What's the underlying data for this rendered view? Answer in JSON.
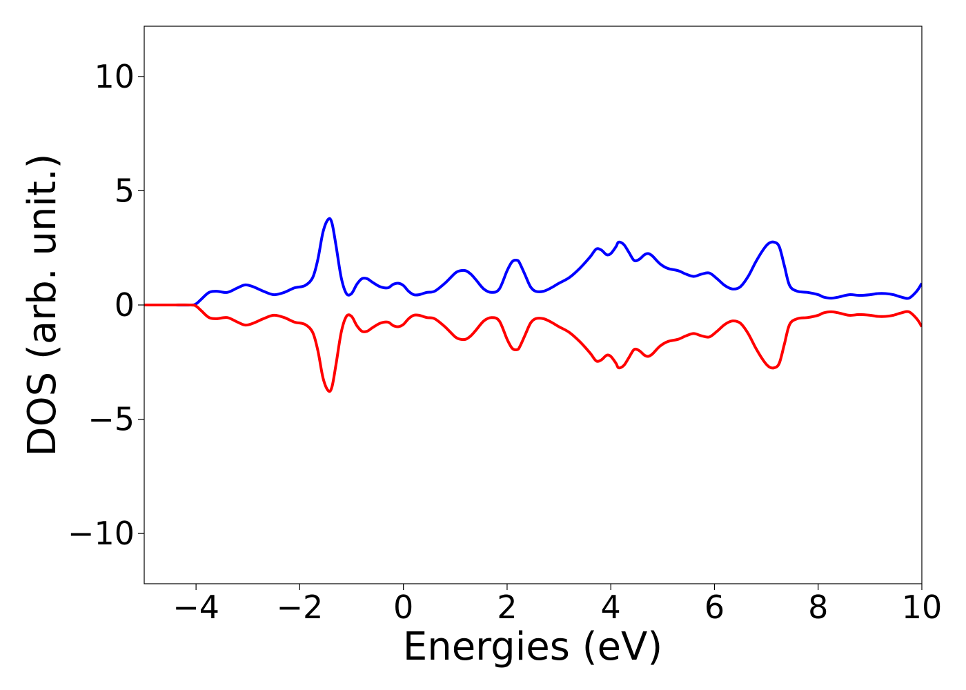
{
  "chart_data": {
    "type": "line",
    "title": "",
    "xlabel": "Energies (eV)",
    "ylabel": "DOS (arb. unit.)",
    "xlim": [
      -5,
      10
    ],
    "ylim": [
      -12.2,
      12.2
    ],
    "xticks": [
      -4,
      -2,
      0,
      2,
      4,
      6,
      8,
      10
    ],
    "xtick_labels": [
      "−4",
      "−2",
      "0",
      "2",
      "4",
      "6",
      "8",
      "10"
    ],
    "yticks": [
      -10,
      -5,
      0,
      5,
      10
    ],
    "ytick_labels": [
      "−10",
      "−5",
      "0",
      "5",
      "10"
    ],
    "grid": false,
    "legend": "none",
    "series": [
      {
        "color": "#0000ff",
        "x": [
          -5.0,
          -4.5,
          -4.1,
          -4.0,
          -3.9,
          -3.75,
          -3.6,
          -3.4,
          -3.2,
          -3.05,
          -2.9,
          -2.7,
          -2.5,
          -2.3,
          -2.1,
          -1.9,
          -1.75,
          -1.65,
          -1.55,
          -1.45,
          -1.38,
          -1.3,
          -1.2,
          -1.1,
          -1.0,
          -0.9,
          -0.8,
          -0.7,
          -0.6,
          -0.45,
          -0.3,
          -0.2,
          -0.1,
          0.0,
          0.1,
          0.2,
          0.3,
          0.45,
          0.6,
          0.8,
          1.0,
          1.1,
          1.2,
          1.3,
          1.4,
          1.55,
          1.7,
          1.85,
          2.0,
          2.1,
          2.2,
          2.25,
          2.35,
          2.45,
          2.55,
          2.7,
          2.85,
          3.0,
          3.2,
          3.4,
          3.6,
          3.72,
          3.82,
          3.92,
          4.0,
          4.1,
          4.15,
          4.25,
          4.35,
          4.45,
          4.55,
          4.65,
          4.72,
          4.8,
          4.95,
          5.1,
          5.3,
          5.45,
          5.6,
          5.75,
          5.9,
          6.05,
          6.2,
          6.35,
          6.5,
          6.65,
          6.8,
          6.95,
          7.05,
          7.15,
          7.25,
          7.35,
          7.45,
          7.6,
          7.8,
          8.0,
          8.1,
          8.25,
          8.4,
          8.6,
          8.8,
          9.0,
          9.15,
          9.3,
          9.45,
          9.6,
          9.75,
          9.9,
          10.0
        ],
        "y": [
          0.0,
          0.0,
          0.0,
          0.05,
          0.25,
          0.55,
          0.6,
          0.55,
          0.75,
          0.88,
          0.8,
          0.6,
          0.45,
          0.55,
          0.75,
          0.85,
          1.2,
          2.0,
          3.2,
          3.75,
          3.6,
          2.6,
          1.2,
          0.5,
          0.5,
          0.9,
          1.15,
          1.15,
          1.0,
          0.8,
          0.75,
          0.9,
          0.95,
          0.85,
          0.6,
          0.45,
          0.45,
          0.55,
          0.6,
          0.95,
          1.4,
          1.5,
          1.5,
          1.35,
          1.1,
          0.7,
          0.55,
          0.7,
          1.5,
          1.9,
          1.95,
          1.8,
          1.3,
          0.8,
          0.6,
          0.6,
          0.75,
          0.95,
          1.2,
          1.6,
          2.1,
          2.45,
          2.4,
          2.2,
          2.25,
          2.55,
          2.75,
          2.65,
          2.3,
          1.95,
          2.0,
          2.2,
          2.25,
          2.15,
          1.8,
          1.6,
          1.5,
          1.35,
          1.25,
          1.35,
          1.4,
          1.15,
          0.85,
          0.7,
          0.8,
          1.25,
          1.9,
          2.45,
          2.7,
          2.75,
          2.55,
          1.7,
          0.85,
          0.6,
          0.55,
          0.45,
          0.35,
          0.3,
          0.35,
          0.45,
          0.42,
          0.45,
          0.5,
          0.5,
          0.45,
          0.35,
          0.3,
          0.6,
          0.95
        ]
      },
      {
        "color": "#ff0000",
        "x": [
          -5.0,
          -4.5,
          -4.1,
          -4.0,
          -3.9,
          -3.75,
          -3.6,
          -3.4,
          -3.2,
          -3.05,
          -2.9,
          -2.7,
          -2.5,
          -2.3,
          -2.1,
          -1.9,
          -1.75,
          -1.65,
          -1.55,
          -1.45,
          -1.38,
          -1.3,
          -1.2,
          -1.1,
          -1.0,
          -0.9,
          -0.8,
          -0.7,
          -0.6,
          -0.45,
          -0.3,
          -0.2,
          -0.1,
          0.0,
          0.1,
          0.2,
          0.3,
          0.45,
          0.6,
          0.8,
          1.0,
          1.1,
          1.2,
          1.3,
          1.4,
          1.55,
          1.7,
          1.85,
          2.0,
          2.1,
          2.2,
          2.25,
          2.35,
          2.45,
          2.55,
          2.7,
          2.85,
          3.0,
          3.2,
          3.4,
          3.6,
          3.72,
          3.82,
          3.92,
          4.0,
          4.1,
          4.15,
          4.25,
          4.35,
          4.45,
          4.55,
          4.65,
          4.72,
          4.8,
          4.95,
          5.1,
          5.3,
          5.45,
          5.6,
          5.75,
          5.9,
          6.05,
          6.2,
          6.35,
          6.5,
          6.65,
          6.8,
          6.95,
          7.05,
          7.15,
          7.25,
          7.35,
          7.45,
          7.6,
          7.8,
          8.0,
          8.1,
          8.25,
          8.4,
          8.6,
          8.8,
          9.0,
          9.15,
          9.3,
          9.45,
          9.6,
          9.75,
          9.9,
          10.0
        ],
        "y": [
          0.0,
          0.0,
          0.0,
          -0.05,
          -0.25,
          -0.55,
          -0.6,
          -0.55,
          -0.75,
          -0.88,
          -0.8,
          -0.6,
          -0.45,
          -0.55,
          -0.75,
          -0.85,
          -1.2,
          -2.0,
          -3.2,
          -3.75,
          -3.6,
          -2.6,
          -1.2,
          -0.5,
          -0.5,
          -0.9,
          -1.15,
          -1.15,
          -1.0,
          -0.8,
          -0.75,
          -0.9,
          -0.95,
          -0.85,
          -0.6,
          -0.45,
          -0.45,
          -0.55,
          -0.6,
          -0.95,
          -1.4,
          -1.5,
          -1.5,
          -1.35,
          -1.1,
          -0.7,
          -0.55,
          -0.7,
          -1.5,
          -1.9,
          -1.95,
          -1.8,
          -1.3,
          -0.8,
          -0.6,
          -0.6,
          -0.75,
          -0.95,
          -1.2,
          -1.6,
          -2.1,
          -2.45,
          -2.4,
          -2.2,
          -2.25,
          -2.55,
          -2.75,
          -2.65,
          -2.3,
          -1.95,
          -2.0,
          -2.2,
          -2.25,
          -2.15,
          -1.8,
          -1.6,
          -1.5,
          -1.35,
          -1.25,
          -1.35,
          -1.4,
          -1.15,
          -0.85,
          -0.7,
          -0.8,
          -1.25,
          -1.9,
          -2.45,
          -2.7,
          -2.75,
          -2.55,
          -1.7,
          -0.85,
          -0.6,
          -0.55,
          -0.45,
          -0.35,
          -0.3,
          -0.35,
          -0.45,
          -0.42,
          -0.45,
          -0.5,
          -0.5,
          -0.45,
          -0.35,
          -0.3,
          -0.6,
          -0.95
        ]
      }
    ]
  }
}
